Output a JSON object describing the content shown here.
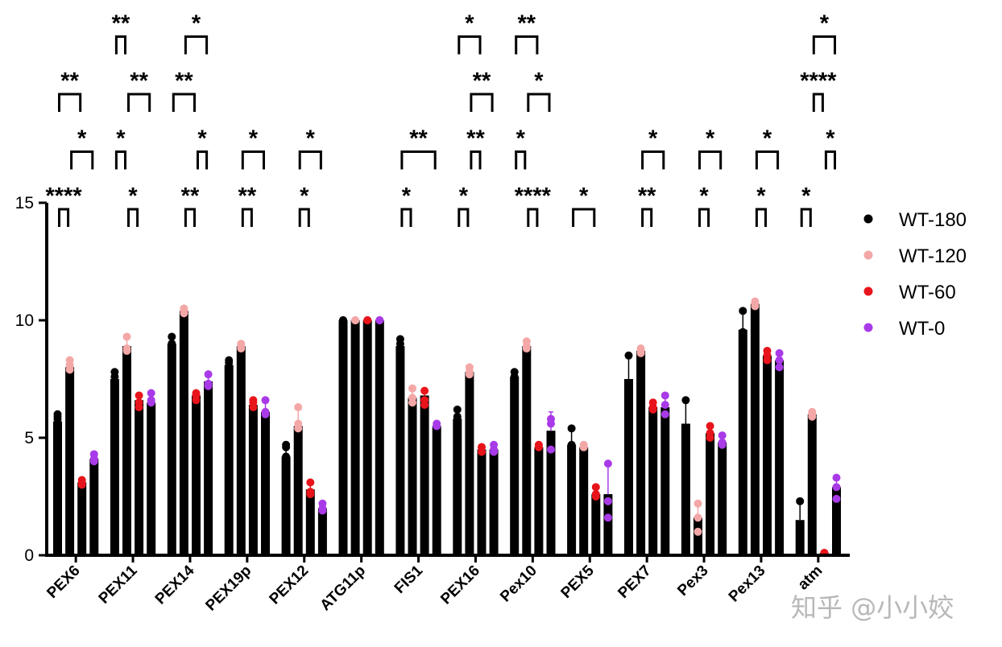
{
  "chart_data": {
    "type": "bar",
    "ylim": [
      0,
      15
    ],
    "yticks": [
      "0",
      "5",
      "10",
      "15"
    ],
    "categories": [
      "PEX6",
      "PEX11",
      "PEX14",
      "PEX19p",
      "PEX12",
      "ATG11p",
      "FIS1",
      "PEX16",
      "Pex10",
      "PEX5",
      "PEX7",
      "Pex3",
      "Pex13",
      "atm"
    ],
    "series": [
      {
        "name": "WT-180",
        "color": "#000000",
        "values": [
          5.7,
          7.5,
          9.0,
          8.1,
          4.2,
          10.0,
          8.9,
          5.8,
          7.6,
          4.7,
          7.5,
          5.6,
          9.6,
          1.5
        ],
        "errors": [
          0.4,
          0.4,
          0.3,
          0.15,
          0.5,
          0.05,
          0.4,
          0.4,
          0.3,
          0.8,
          1.0,
          0.9,
          0.8,
          0.8
        ],
        "points": [
          [
            5.8,
            6.0,
            5.9
          ],
          [
            7.6,
            7.8,
            7.3
          ],
          [
            9.0,
            9.3,
            9.0
          ],
          [
            8.2,
            8.0,
            8.3
          ],
          [
            4.7,
            4.6,
            4.2
          ],
          [
            10.0,
            10.0,
            10.0
          ],
          [
            9.2,
            8.8,
            9.0
          ],
          [
            6.2,
            5.8,
            5.9
          ],
          [
            7.6,
            7.8,
            7.5
          ],
          [
            5.4,
            4.7,
            4.6
          ],
          [
            8.5,
            7.2,
            7.0
          ],
          [
            6.6,
            5.4,
            5.0
          ],
          [
            10.4,
            9.5,
            9.2
          ],
          [
            2.3,
            1.2,
            1.0
          ]
        ]
      },
      {
        "name": "WT-120",
        "color": "#f4a7a7",
        "values": [
          8.0,
          8.9,
          10.4,
          8.9,
          5.5,
          10.0,
          6.7,
          7.8,
          8.9,
          4.6,
          8.7,
          1.6,
          10.7,
          6.0
        ],
        "errors": [
          0.3,
          0.4,
          0.15,
          0.15,
          0.7,
          0.05,
          0.4,
          0.2,
          0.2,
          0.1,
          0.15,
          0.6,
          0.15,
          0.1
        ],
        "points": [
          [
            8.3,
            8.1,
            7.9
          ],
          [
            9.3,
            8.8,
            8.7
          ],
          [
            10.5,
            10.3,
            10.4
          ],
          [
            9.0,
            8.8,
            8.9
          ],
          [
            6.3,
            5.4,
            5.6
          ],
          [
            10.0,
            10.0,
            10.0
          ],
          [
            7.1,
            6.7,
            6.5
          ],
          [
            8.0,
            7.8,
            7.7
          ],
          [
            9.1,
            8.8,
            8.9
          ],
          [
            4.7,
            4.6,
            4.6
          ],
          [
            8.8,
            8.6,
            8.7
          ],
          [
            2.2,
            1.6,
            1.0
          ],
          [
            10.8,
            10.6,
            10.7
          ],
          [
            6.1,
            5.9,
            6.0
          ]
        ]
      },
      {
        "name": "WT-60",
        "color": "#e8141b",
        "values": [
          3.1,
          6.6,
          6.8,
          6.4,
          2.8,
          10.0,
          6.8,
          4.5,
          4.6,
          2.6,
          6.3,
          5.2,
          8.5,
          0.1
        ],
        "errors": [
          0.15,
          0.3,
          0.2,
          0.3,
          0.3,
          0.05,
          0.3,
          0.2,
          0.1,
          0.3,
          0.2,
          0.3,
          0.2,
          0.05
        ],
        "points": [
          [
            3.2,
            3.0,
            3.1
          ],
          [
            6.8,
            6.5,
            6.3
          ],
          [
            6.9,
            6.6,
            6.8
          ],
          [
            6.6,
            6.3,
            6.5
          ],
          [
            3.1,
            2.7,
            2.6
          ],
          [
            10.0,
            10.0,
            10.0
          ],
          [
            7.0,
            6.6,
            6.4
          ],
          [
            4.6,
            4.4,
            4.6
          ],
          [
            4.7,
            4.6,
            4.6
          ],
          [
            2.9,
            2.6,
            2.5
          ],
          [
            6.5,
            6.2,
            6.3
          ],
          [
            5.5,
            5.0,
            5.2
          ],
          [
            8.7,
            8.5,
            8.3
          ],
          [
            0.1,
            0.1,
            0.1
          ]
        ]
      },
      {
        "name": "WT-0",
        "color": "#a83ae8",
        "values": [
          4.1,
          6.5,
          7.4,
          6.1,
          2.0,
          10.0,
          5.5,
          4.5,
          5.3,
          2.6,
          6.3,
          4.8,
          8.3,
          2.9
        ],
        "errors": [
          0.2,
          0.3,
          0.3,
          0.4,
          0.2,
          0.05,
          0.1,
          0.15,
          0.8,
          1.3,
          0.5,
          0.3,
          0.3,
          0.4
        ],
        "points": [
          [
            4.3,
            4.0,
            4.1
          ],
          [
            6.9,
            6.6,
            6.5
          ],
          [
            7.7,
            7.3,
            7.2
          ],
          [
            6.6,
            6.0,
            6.1
          ],
          [
            2.2,
            2.0,
            1.9
          ],
          [
            10.0,
            10.0,
            10.0
          ],
          [
            5.6,
            5.5,
            5.5
          ],
          [
            4.7,
            4.5,
            4.4
          ],
          [
            5.8,
            4.5,
            5.6
          ],
          [
            3.9,
            2.3,
            1.6
          ],
          [
            6.8,
            6.4,
            6.0
          ],
          [
            5.1,
            4.8,
            4.7
          ],
          [
            8.6,
            8.3,
            8.0
          ],
          [
            3.3,
            2.9,
            2.4
          ]
        ]
      }
    ],
    "significance": [
      {
        "cat": 0,
        "from": 0,
        "to": 1,
        "label": "****"
      },
      {
        "cat": 0,
        "from": 1,
        "to": 3,
        "label": "*"
      },
      {
        "cat": 0,
        "from": 0,
        "to": 2,
        "label": "**"
      },
      {
        "cat": 1,
        "from": 1,
        "to": 2,
        "label": "*"
      },
      {
        "cat": 1,
        "from": 0,
        "to": 1,
        "label": "*"
      },
      {
        "cat": 1,
        "from": 1,
        "to": 3,
        "label": "**"
      },
      {
        "cat": 1,
        "from": 0,
        "to": 1,
        "label": "**"
      },
      {
        "cat": 2,
        "from": 1,
        "to": 2,
        "label": "**"
      },
      {
        "cat": 2,
        "from": 2,
        "to": 3,
        "label": "*"
      },
      {
        "cat": 2,
        "from": 0,
        "to": 2,
        "label": "**"
      },
      {
        "cat": 2,
        "from": 1,
        "to": 3,
        "label": "*"
      },
      {
        "cat": 2,
        "from": 0,
        "to": 3,
        "label": "*"
      },
      {
        "cat": 3,
        "from": 1,
        "to": 2,
        "label": "**"
      },
      {
        "cat": 3,
        "from": 1,
        "to": 3,
        "label": "*"
      },
      {
        "cat": 4,
        "from": 1,
        "to": 2,
        "label": "*"
      },
      {
        "cat": 4,
        "from": 1,
        "to": 3,
        "label": "*"
      },
      {
        "cat": 6,
        "from": 0,
        "to": 1,
        "label": "*"
      },
      {
        "cat": 6,
        "from": 0,
        "to": 3,
        "label": "**"
      },
      {
        "cat": 7,
        "from": 0,
        "to": 1,
        "label": "*"
      },
      {
        "cat": 7,
        "from": 1,
        "to": 2,
        "label": "**"
      },
      {
        "cat": 7,
        "from": 1,
        "to": 3,
        "label": "**"
      },
      {
        "cat": 7,
        "from": 0,
        "to": 2,
        "label": "*"
      },
      {
        "cat": 7,
        "from": 0,
        "to": 3,
        "label": "*"
      },
      {
        "cat": 8,
        "from": 1,
        "to": 2,
        "label": "****"
      },
      {
        "cat": 8,
        "from": 0,
        "to": 1,
        "label": "*"
      },
      {
        "cat": 8,
        "from": 1,
        "to": 3,
        "label": "*"
      },
      {
        "cat": 8,
        "from": 0,
        "to": 2,
        "label": "**"
      },
      {
        "cat": 9,
        "from": 0,
        "to": 2,
        "label": "*"
      },
      {
        "cat": 10,
        "from": 1,
        "to": 2,
        "label": "**"
      },
      {
        "cat": 10,
        "from": 1,
        "to": 3,
        "label": "*"
      },
      {
        "cat": 11,
        "from": 1,
        "to": 2,
        "label": "*"
      },
      {
        "cat": 11,
        "from": 1,
        "to": 3,
        "label": "*"
      },
      {
        "cat": 12,
        "from": 1,
        "to": 2,
        "label": "*"
      },
      {
        "cat": 12,
        "from": 1,
        "to": 3,
        "label": "*"
      },
      {
        "cat": 13,
        "from": 0,
        "to": 1,
        "label": "*"
      },
      {
        "cat": 13,
        "from": 2,
        "to": 3,
        "label": "*"
      },
      {
        "cat": 13,
        "from": 1,
        "to": 2,
        "label": "****"
      },
      {
        "cat": 13,
        "from": 1,
        "to": 3,
        "label": "*"
      }
    ],
    "legend_position": "right",
    "watermark": "知乎 @小小姣"
  }
}
